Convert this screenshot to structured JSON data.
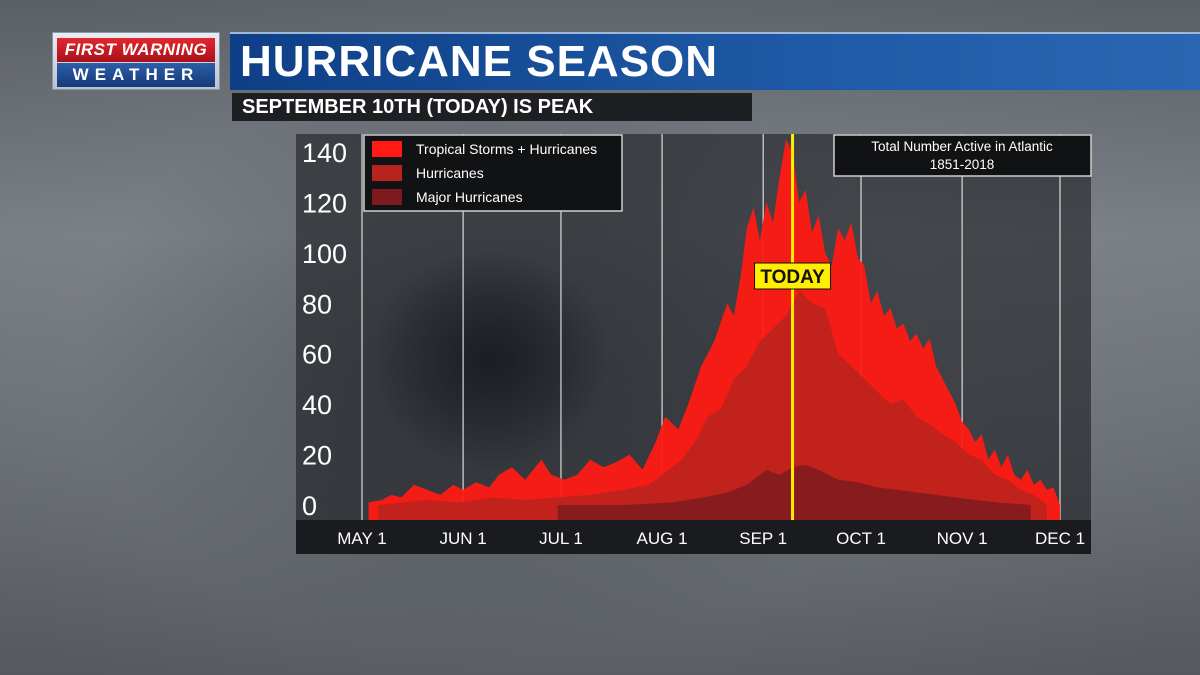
{
  "header": {
    "logo_line1": "FIRST WARNING",
    "logo_line2": "WEATHER",
    "title": "HURRICANE SEASON",
    "subtitle": "SEPTEMBER 10TH (TODAY) IS PEAK"
  },
  "colors": {
    "tropical": "#ff1a14",
    "hurricanes": "#b8231d",
    "major": "#7c1a1e",
    "today_line": "#ffee00"
  },
  "chart_data": {
    "type": "area",
    "title": "Total Number Active in Atlantic",
    "subtitle": "1851-2018",
    "x_tick_labels": [
      "MAY 1",
      "JUN 1",
      "JUL 1",
      "AUG 1",
      "SEP 1",
      "OCT 1",
      "NOV 1",
      "DEC 1"
    ],
    "x_tick_days": [
      0,
      31,
      61,
      92,
      123,
      153,
      184,
      214
    ],
    "y_tick_labels": [
      "140",
      "120",
      "100",
      "80",
      "60",
      "40",
      "20",
      "0"
    ],
    "ylim": [
      0,
      140
    ],
    "xlim": [
      -20,
      225
    ],
    "legend_position": "top-left",
    "today_label": "TODAY",
    "today_day": 132,
    "series": [
      {
        "name": "Tropical Storms + Hurricanes",
        "color": "#ff1a14",
        "x": [
          2,
          6,
          9,
          12,
          16,
          20,
          24,
          28,
          31,
          35,
          39,
          42,
          46,
          50,
          55,
          58,
          62,
          66,
          70,
          74,
          78,
          82,
          86,
          90,
          93,
          97,
          100,
          104,
          108,
          112,
          114,
          116,
          118,
          120,
          122,
          124,
          126,
          128,
          130,
          132,
          134,
          136,
          138,
          140,
          142,
          144,
          146,
          148,
          150,
          152,
          154,
          156,
          158,
          160,
          162,
          164,
          166,
          168,
          170,
          172,
          174,
          176,
          178,
          180,
          182,
          184,
          186,
          188,
          190,
          192,
          194,
          196,
          198,
          200,
          202,
          204,
          206,
          208,
          210,
          212,
          214
        ],
        "y": [
          1,
          2,
          4,
          3,
          8,
          6,
          4,
          8,
          6,
          9,
          7,
          12,
          15,
          10,
          18,
          12,
          10,
          12,
          18,
          15,
          17,
          20,
          14,
          25,
          35,
          30,
          40,
          55,
          65,
          80,
          75,
          90,
          110,
          118,
          105,
          120,
          112,
          130,
          145,
          140,
          120,
          125,
          108,
          115,
          100,
          95,
          110,
          105,
          112,
          98,
          95,
          80,
          85,
          75,
          78,
          70,
          72,
          65,
          68,
          62,
          66,
          55,
          50,
          45,
          40,
          33,
          30,
          25,
          28,
          18,
          22,
          15,
          20,
          12,
          10,
          14,
          8,
          10,
          6,
          7,
          0
        ]
      },
      {
        "name": "Hurricanes",
        "color": "#b8231d",
        "x": [
          5,
          12,
          20,
          30,
          40,
          50,
          60,
          70,
          80,
          88,
          94,
          98,
          102,
          106,
          110,
          114,
          118,
          122,
          126,
          130,
          134,
          138,
          142,
          146,
          150,
          154,
          158,
          162,
          166,
          170,
          174,
          178,
          182,
          186,
          190,
          194,
          198,
          202,
          206,
          210
        ],
        "y": [
          0,
          1,
          2,
          1,
          3,
          2,
          3,
          4,
          6,
          8,
          14,
          18,
          25,
          35,
          38,
          50,
          55,
          65,
          70,
          75,
          85,
          80,
          78,
          60,
          55,
          50,
          45,
          40,
          42,
          35,
          32,
          28,
          25,
          20,
          18,
          12,
          10,
          6,
          4,
          0
        ]
      },
      {
        "name": "Major Hurricanes",
        "color": "#7c1a1e",
        "x": [
          60,
          80,
          95,
          105,
          112,
          118,
          124,
          128,
          132,
          136,
          140,
          146,
          152,
          158,
          164,
          170,
          176,
          182,
          188,
          195,
          205
        ],
        "y": [
          0,
          0,
          1,
          3,
          5,
          8,
          14,
          12,
          15,
          16,
          14,
          10,
          9,
          7,
          6,
          5,
          4,
          3,
          2,
          1,
          0
        ]
      }
    ]
  }
}
